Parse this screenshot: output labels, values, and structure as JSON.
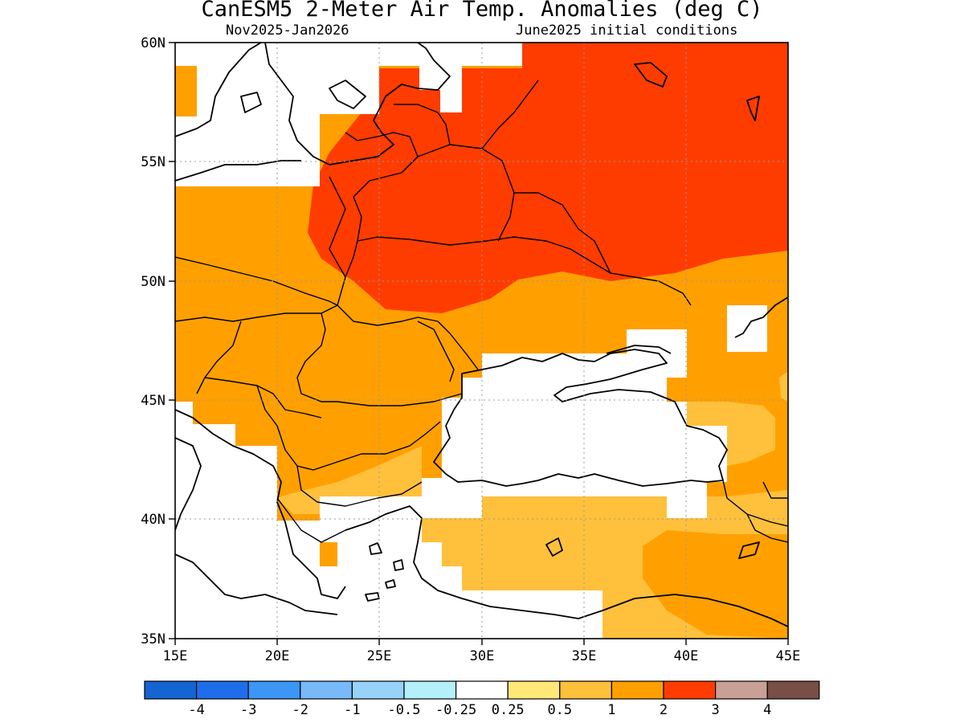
{
  "title": "CanESM5 2-Meter Air Temp. Anomalies (deg C)",
  "subtitle_left": "Nov2025-Jan2026",
  "subtitle_right": "June2025 initial conditions",
  "map": {
    "lon_range": [
      15,
      45
    ],
    "lat_range": [
      35,
      60
    ],
    "lon_ticks": [
      "15E",
      "20E",
      "25E",
      "30E",
      "35E",
      "40E",
      "45E"
    ],
    "lat_ticks": [
      "35N",
      "40N",
      "45N",
      "50N",
      "55N",
      "60N"
    ],
    "grid": "dotted",
    "colors": {
      "ocean_or_neutral": "#ffffff",
      "c_0_5_1": "#ffc03c",
      "c_1_2": "#ffa000",
      "c_2_3": "#ff3c00",
      "land_border": "#000000"
    }
  },
  "colorbar": {
    "colors": [
      "#1464d2",
      "#1e6eeb",
      "#3c96f5",
      "#78b9fa",
      "#96d2fa",
      "#b4f0fa",
      "#ffffff",
      "#ffe878",
      "#ffc03c",
      "#ffa000",
      "#ff3c00",
      "#c8a096",
      "#784e46"
    ],
    "labels": [
      "-4",
      "-3",
      "-2",
      "-1",
      "-0.5",
      "-0.25",
      "0.25",
      "0.5",
      "1",
      "2",
      "3",
      "4"
    ]
  }
}
